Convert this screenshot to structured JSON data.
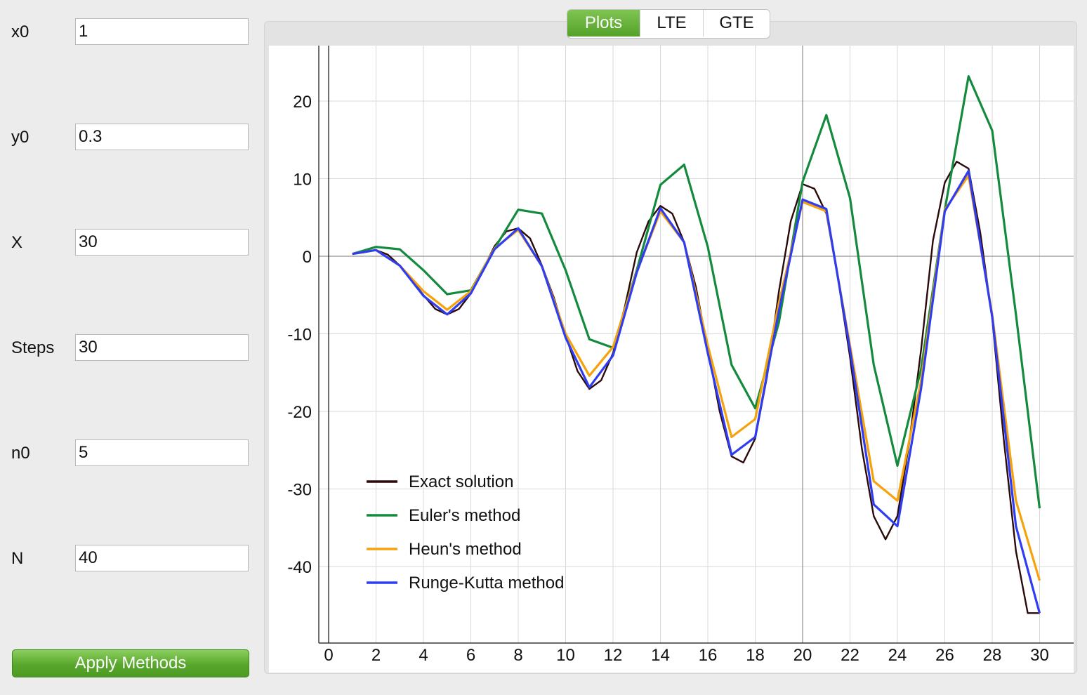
{
  "form": {
    "fields": [
      {
        "label": "x0",
        "value": "1"
      },
      {
        "label": "y0",
        "value": "0.3"
      },
      {
        "label": "X",
        "value": "30"
      },
      {
        "label": "Steps",
        "value": "30"
      },
      {
        "label": "n0",
        "value": "5"
      },
      {
        "label": "N",
        "value": "40"
      }
    ],
    "apply_label": "Apply Methods"
  },
  "tabs": [
    {
      "label": "Plots",
      "active": true
    },
    {
      "label": "LTE",
      "active": false
    },
    {
      "label": "GTE",
      "active": false
    }
  ],
  "chart_data": {
    "type": "line",
    "title": "",
    "xlabel": "",
    "ylabel": "",
    "xlim": [
      0,
      30
    ],
    "ylim": [
      -48,
      27
    ],
    "x_ticks": [
      0,
      2,
      4,
      6,
      8,
      10,
      12,
      14,
      16,
      18,
      20,
      22,
      24,
      26,
      28,
      30
    ],
    "x_tick_labels": [
      "0",
      "2",
      "4",
      "6",
      "8",
      "10",
      "12",
      "14",
      "16",
      "18",
      "20",
      "22",
      "24",
      "26",
      "28",
      "30"
    ],
    "y_ticks": [
      20,
      10,
      0,
      -10,
      -20,
      -30,
      -40
    ],
    "y_tick_labels": [
      "20",
      "10",
      "0",
      "-10",
      "-20",
      "-30",
      "-40"
    ],
    "grid": true,
    "legend_position": "bottom-left",
    "series": [
      {
        "name": "Exact solution",
        "color": "#2b0a0a",
        "x": [
          1,
          1.5,
          2,
          2.5,
          3,
          3.5,
          4,
          4.5,
          5,
          5.5,
          6,
          6.5,
          7,
          7.5,
          8,
          8.5,
          9,
          9.5,
          10,
          10.5,
          11,
          11.5,
          12,
          12.5,
          13,
          13.5,
          14,
          14.5,
          15,
          15.5,
          16,
          16.5,
          17,
          17.5,
          18,
          18.5,
          19,
          19.5,
          20,
          20.5,
          21,
          21.5,
          22,
          22.5,
          23,
          23.5,
          24,
          24.5,
          25,
          25.5,
          26,
          26.5,
          27,
          27.5,
          28,
          28.5,
          29,
          29.5,
          30
        ],
        "y": [
          0.3,
          0.5,
          0.8,
          0.2,
          -1.2,
          -3,
          -5,
          -6.8,
          -7.5,
          -6.8,
          -4.8,
          -1.8,
          1.3,
          3.2,
          3.6,
          2.3,
          -1.2,
          -5.3,
          -10.2,
          -14.8,
          -17.1,
          -16,
          -12.5,
          -6.5,
          0.5,
          4.5,
          6.5,
          5.5,
          1.8,
          -4,
          -12,
          -20,
          -25.8,
          -26.6,
          -23.5,
          -15.5,
          -4.5,
          4.5,
          9.3,
          8.7,
          5.5,
          -3,
          -13,
          -24.8,
          -33.5,
          -36.5,
          -33.5,
          -24,
          -12,
          2,
          9.5,
          12.2,
          11.3,
          3,
          -8,
          -24,
          -38,
          -46,
          -46
        ]
      },
      {
        "name": "Euler's method",
        "color": "#138a3d",
        "x": [
          1,
          2,
          3,
          4,
          5,
          6,
          7,
          8,
          9,
          10,
          11,
          12,
          13,
          14,
          15,
          16,
          17,
          18,
          19,
          20,
          21,
          22,
          23,
          24,
          25,
          26,
          27,
          28,
          29,
          30
        ],
        "y": [
          0.3,
          1.2,
          0.9,
          -1.8,
          -4.9,
          -4.4,
          1,
          6,
          5.5,
          -1.8,
          -10.7,
          -11.8,
          -1.8,
          9.2,
          11.8,
          1.2,
          -14,
          -19.6,
          -8.5,
          9.6,
          18.2,
          7.5,
          -14,
          -27,
          -14.5,
          6,
          23.2,
          16.2,
          -7.5,
          -32.5
        ]
      },
      {
        "name": "Heun's method",
        "color": "#f5a20b",
        "x": [
          1,
          2,
          3,
          4,
          5,
          6,
          7,
          8,
          9,
          10,
          11,
          12,
          13,
          14,
          15,
          16,
          17,
          18,
          19,
          20,
          21,
          22,
          23,
          24,
          25,
          26,
          27,
          28,
          29,
          30
        ],
        "y": [
          0.3,
          0.8,
          -1.2,
          -4.5,
          -6.9,
          -4.5,
          1,
          3.4,
          -1.3,
          -10,
          -15.4,
          -11.7,
          -2,
          5.8,
          1.8,
          -11.5,
          -23.3,
          -21,
          -6,
          7,
          5.8,
          -11.5,
          -29,
          -31.5,
          -16,
          6,
          10.4,
          -7.5,
          -31.5,
          -41.8
        ]
      },
      {
        "name": "Runge-Kutta method",
        "color": "#2f3df2",
        "x": [
          1,
          2,
          3,
          4,
          5,
          6,
          7,
          8,
          9,
          10,
          11,
          12,
          13,
          14,
          15,
          16,
          17,
          18,
          19,
          20,
          21,
          22,
          23,
          24,
          25,
          26,
          27,
          28,
          29,
          30
        ],
        "y": [
          0.3,
          0.8,
          -1.2,
          -5.1,
          -7.5,
          -4.8,
          0.9,
          3.6,
          -1.3,
          -10.5,
          -16.9,
          -12.8,
          -2.1,
          6.2,
          1.8,
          -12.5,
          -25.6,
          -23.3,
          -7,
          7.3,
          6.1,
          -12,
          -32,
          -34.8,
          -17,
          5.8,
          11,
          -7.8,
          -34.8,
          -46
        ]
      }
    ]
  }
}
